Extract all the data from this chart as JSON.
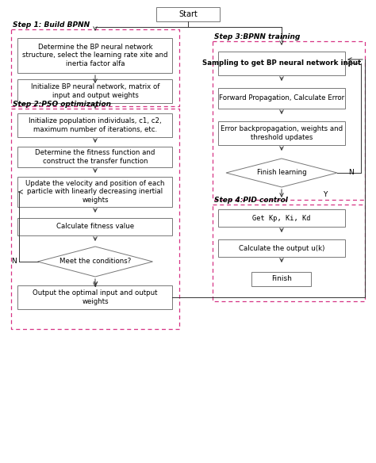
{
  "bg_color": "#ffffff",
  "start_text": "Start",
  "step1_label": "Step 1: Build BPNN",
  "step2_label": "Step 2:PSO optimization",
  "step3_label": "Step 3:BPNN training",
  "step4_label": "Step 4:PID control",
  "box1a": "Determine the BP neural network\nstructure, select the learning rate xite and\ninertia factor alfa",
  "box1b": "Initialize BP neural network, matrix of\ninput and output weights",
  "box2a": "Initialize population individuals, c1, c2,\nmaximum number of iterations, etc.",
  "box2b": "Determine the fitness function and\nconstruct the transfer function",
  "box2c": "Update the velocity and position of each\nparticle with linearly decreasing inertial\nweights",
  "box2d": "Calculate fitness value",
  "diamond2": "Meet the conditions?",
  "box2e": "Output the optimal input and output\nweights",
  "box3a": "Sampling to get BP neural network input",
  "box3b": "Forward Propagation, Calculate Error",
  "box3c": "Error backpropagation, weights and\nthreshold updates",
  "diamond3": "Finish learning",
  "box4a": "Get Kp, Ki, Kd",
  "box4b": "Calculate the output u(k)",
  "finish_text": "Finish",
  "dash_color": "#d63384",
  "box_edge": "#777777",
  "arrow_color": "#333333",
  "text_color": "#000000"
}
